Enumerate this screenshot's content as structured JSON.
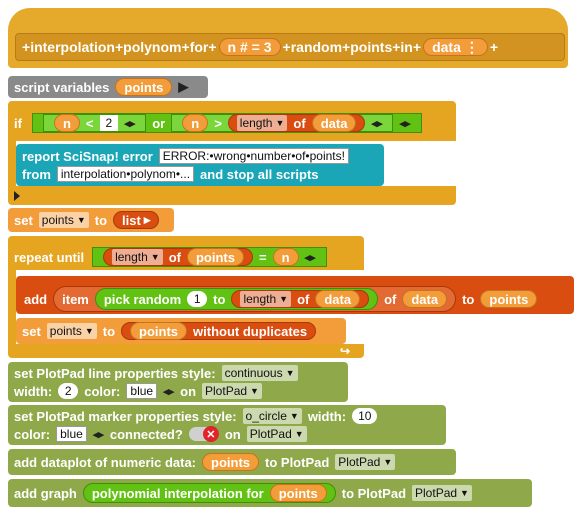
{
  "hat": {
    "plus": "+",
    "w1": "interpolation",
    "w2": "polynom",
    "w3": "for",
    "param1": "n # = 3",
    "w4": "random",
    "w5": "points",
    "w6": "in",
    "param2": "data",
    "param2_arrow": "⋮"
  },
  "script_vars": {
    "label": "script variables",
    "var": "points",
    "arrow": "▶"
  },
  "if_block": {
    "if": "if",
    "n": "n",
    "lt": "<",
    "two": "2",
    "arrows": "◂▸",
    "or": "or",
    "gt": ">",
    "length_dd": "length",
    "of": "of",
    "data": "data"
  },
  "report": {
    "line1_prefix": "report SciSnap! error",
    "error_text": "ERROR:•wrong•number•of•points!",
    "line2_from": "from",
    "from_value": "interpolation•polynom•...",
    "line2_suffix": "and stop all scripts"
  },
  "set1": {
    "set": "set",
    "var_dd": "points",
    "to": "to",
    "list": "list",
    "arrow": "▸"
  },
  "repeat": {
    "label": "repeat until",
    "length_dd": "length",
    "of": "of",
    "points": "points",
    "eq": "=",
    "n": "n"
  },
  "add": {
    "add": "add",
    "item": "item",
    "pick": "pick random",
    "one": "1",
    "to1": "to",
    "length_dd": "length",
    "of1": "of",
    "data1": "data",
    "of2": "of",
    "data2": "data",
    "to2": "to",
    "points": "points"
  },
  "set2": {
    "set": "set",
    "var_dd": "points",
    "to": "to",
    "points": "points",
    "without": "without duplicates"
  },
  "line_props": {
    "l1": "set PlotPad line properties style:",
    "style_dd": "continuous",
    "width": "width:",
    "width_val": "2",
    "color": "color:",
    "color_val": "blue",
    "on": "on",
    "target_dd": "PlotPad"
  },
  "marker_props": {
    "l1": "set PlotPad marker properties style:",
    "style_dd": "o_circle",
    "width": "width:",
    "width_val": "10",
    "color": "color:",
    "color_val": "blue",
    "connected": "connected?",
    "on": "on",
    "target_dd": "PlotPad"
  },
  "dataplot": {
    "l1": "add dataplot of numeric data:",
    "points": "points",
    "to": "to PlotPad",
    "target_dd": "PlotPad"
  },
  "graph": {
    "l1": "add graph",
    "poly": "polynomial interpolation for",
    "points": "points",
    "to": "to PlotPad",
    "target_dd": "PlotPad"
  },
  "colors": {
    "other": "#e5a92b",
    "variables": "#f39c3a",
    "control": "#e6a521",
    "lists": "#d94d11",
    "operators": "#62c213",
    "scisnap": "#1ba6b8",
    "plotpad": "#8fa84a",
    "looks": "#808080"
  }
}
